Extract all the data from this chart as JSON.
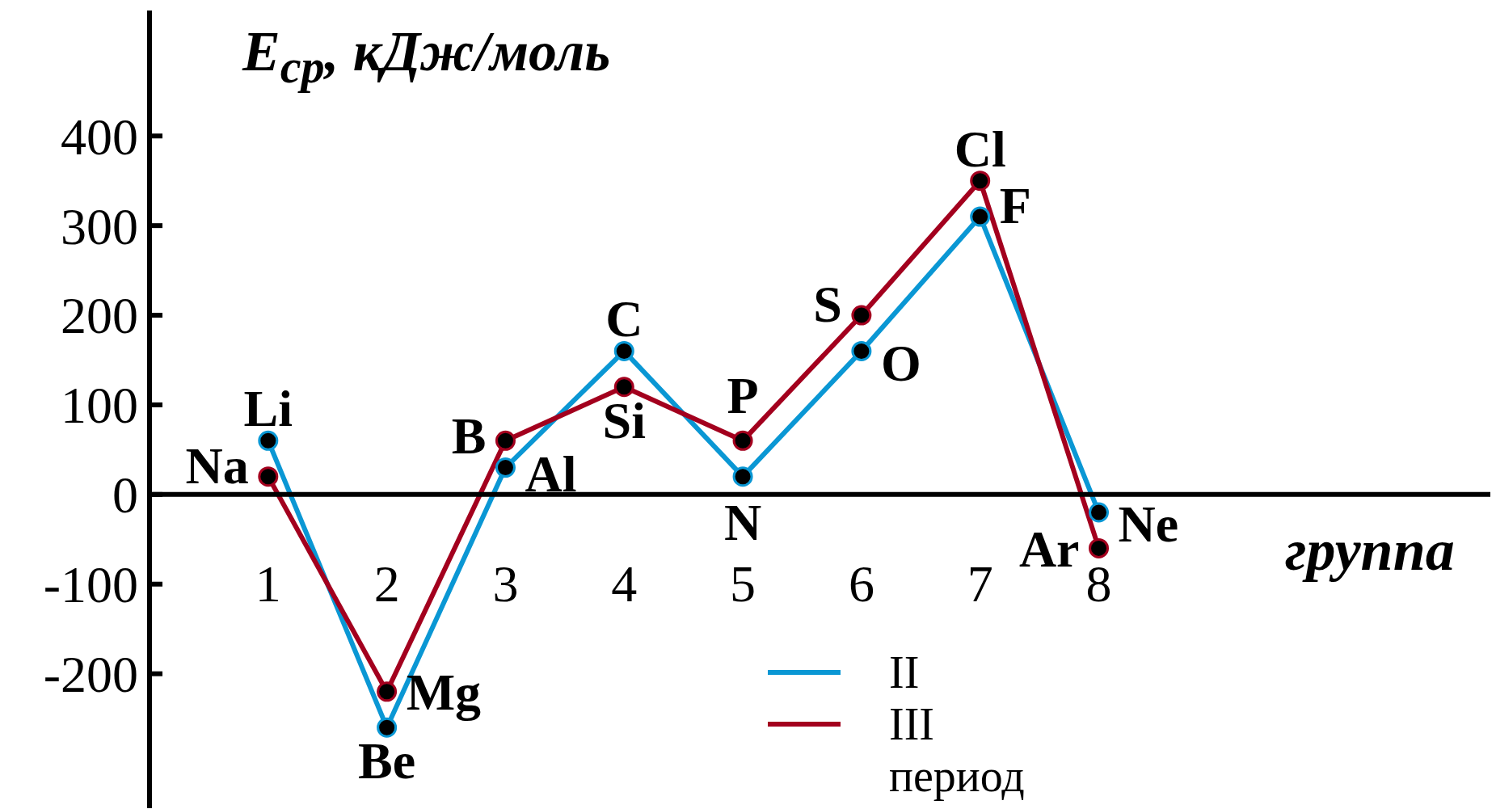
{
  "chart_data": {
    "type": "line",
    "xlabel": "группа",
    "ylabel": "E$_{ср}$, кДж/моль",
    "legend_title": "период",
    "x": [
      1,
      2,
      3,
      4,
      5,
      6,
      7,
      8
    ],
    "xlim": [
      0,
      11.3
    ],
    "xticks": [
      1,
      2,
      3,
      4,
      5,
      6,
      7,
      8
    ],
    "ylim": [
      -350,
      540
    ],
    "yticks": [
      -200,
      -100,
      0,
      100,
      200,
      300,
      400
    ],
    "series": [
      {
        "name": "II",
        "color": "#0a97d4",
        "values": [
          60,
          -260,
          30,
          160,
          20,
          160,
          310,
          -20
        ]
      },
      {
        "name": "III",
        "color": "#a3001e",
        "values": [
          20,
          -220,
          60,
          120,
          60,
          200,
          350,
          -60
        ]
      }
    ],
    "annotations": [
      {
        "text": "Li",
        "x": 1,
        "y": 60
      },
      {
        "text": "Na",
        "x": 1,
        "y": 20
      },
      {
        "text": "Be",
        "x": 2,
        "y": -260
      },
      {
        "text": "Mg",
        "x": 2,
        "y": -220
      },
      {
        "text": "B",
        "x": 3,
        "y": 30
      },
      {
        "text": "Al",
        "x": 3,
        "y": 60
      },
      {
        "text": "C",
        "x": 4,
        "y": 160
      },
      {
        "text": "Si",
        "x": 4,
        "y": 120
      },
      {
        "text": "N",
        "x": 5,
        "y": 20
      },
      {
        "text": "P",
        "x": 5,
        "y": 60
      },
      {
        "text": "O",
        "x": 6,
        "y": 160
      },
      {
        "text": "S",
        "x": 6,
        "y": 200
      },
      {
        "text": "F",
        "x": 7,
        "y": 310
      },
      {
        "text": "Cl",
        "x": 7,
        "y": 350
      },
      {
        "text": "Ne",
        "x": 8,
        "y": -20
      },
      {
        "text": "Ar",
        "x": 8,
        "y": -60
      }
    ],
    "legend": "bottom",
    "marker": "circle",
    "line_style": "solid"
  }
}
